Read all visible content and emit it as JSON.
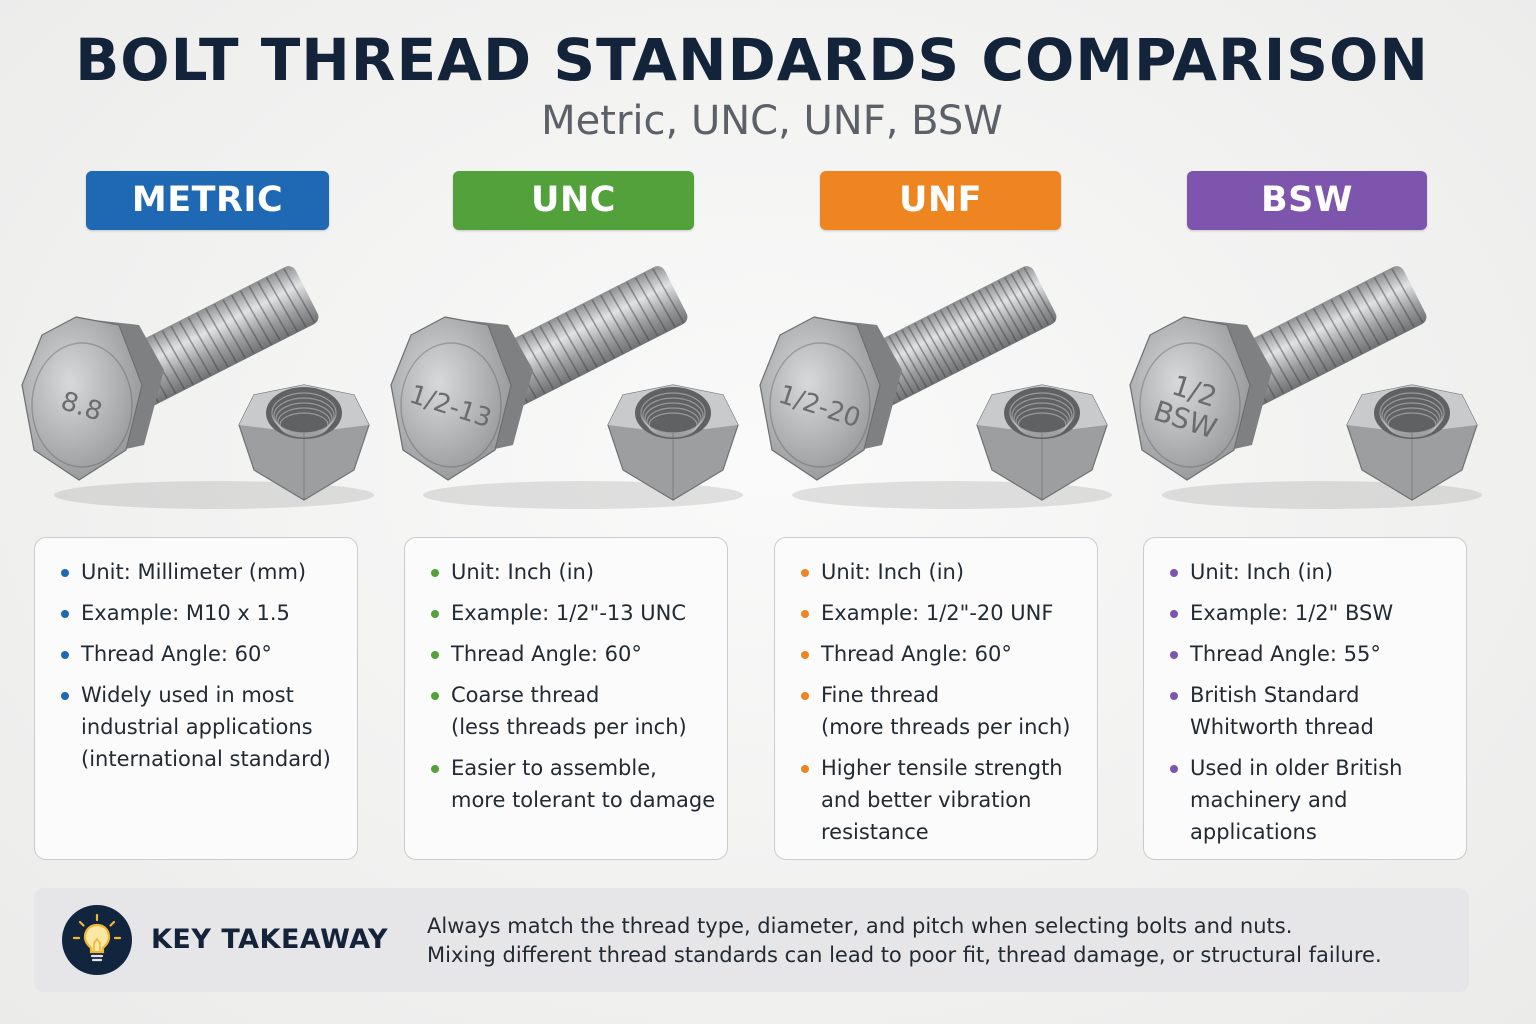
{
  "header": {
    "title": "BOLT THREAD STANDARDS COMPARISON",
    "subtitle": "Metric, UNC, UNF, BSW"
  },
  "standards": [
    {
      "label": "METRIC",
      "color": "#1f68b3",
      "head_mark_lines": [
        "8.8"
      ],
      "bullets": [
        "Unit: Millimeter (mm)",
        "Example: M10 x 1.5",
        "Thread Angle: 60°",
        "Widely used in most\nindustrial applications\n(international standard)"
      ]
    },
    {
      "label": "UNC",
      "color": "#52a13a",
      "head_mark_lines": [
        "1/2-13"
      ],
      "bullets": [
        "Unit: Inch (in)",
        "Example: 1/2\"-13 UNC",
        "Thread Angle: 60°",
        "Coarse thread\n(less threads per inch)",
        "Easier to assemble,\nmore tolerant to damage"
      ]
    },
    {
      "label": "UNF",
      "color": "#ee8520",
      "head_mark_lines": [
        "1/2-20"
      ],
      "bullets": [
        "Unit: Inch (in)",
        "Example: 1/2\"-20 UNF",
        "Thread Angle: 60°",
        "Fine thread\n(more threads per inch)",
        "Higher tensile strength\nand better vibration\nresistance"
      ]
    },
    {
      "label": "BSW",
      "color": "#7d55ad",
      "head_mark_lines": [
        "1/2",
        "BSW"
      ],
      "bullets": [
        "Unit: Inch (in)",
        "Example: 1/2\" BSW",
        "Thread Angle: 55°",
        "British Standard\nWhitworth thread",
        "Used in older British\nmachinery and\napplications"
      ]
    }
  ],
  "takeaway": {
    "label": "KEY TAKEAWAY",
    "icon": "lightbulb-icon",
    "text_line1": "Always match the thread type, diameter, and pitch when selecting bolts and nuts.",
    "text_line2": "Mixing different thread standards can lead to poor fit, thread damage, or structural failure."
  }
}
